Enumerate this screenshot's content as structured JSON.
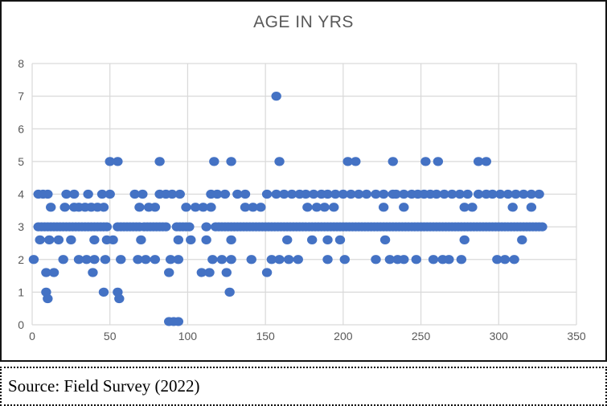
{
  "source_note": {
    "text": "Source: Field Survey (2022)"
  },
  "chart_data": {
    "type": "scatter",
    "title": "AGE IN YRS",
    "xlabel": "",
    "ylabel": "",
    "xlim": [
      0,
      350
    ],
    "ylim": [
      0,
      8
    ],
    "x_ticks": [
      0,
      50,
      100,
      150,
      200,
      250,
      300,
      350
    ],
    "y_ticks": [
      0,
      1,
      2,
      3,
      4,
      5,
      6,
      7,
      8
    ],
    "grid": true,
    "legend": false,
    "marker_color": "#4472C4",
    "gridline_color": "#D9D9D9",
    "tick_label_color": "#595959",
    "title_color": "#595959",
    "series": [
      {
        "name": "age-7",
        "y": 7,
        "x": [
          157
        ]
      },
      {
        "name": "age-5",
        "y": 5,
        "x": [
          50,
          55,
          82,
          117,
          128,
          159,
          203,
          208,
          232,
          253,
          261,
          287,
          292
        ]
      },
      {
        "name": "age-4",
        "y": 4,
        "x": [
          4,
          7,
          10,
          22,
          27,
          36,
          45,
          50,
          66,
          71,
          82,
          86,
          90,
          95,
          115,
          119,
          124,
          132,
          137,
          151,
          157,
          162,
          167,
          172,
          176,
          181,
          186,
          190,
          195,
          200,
          205,
          210,
          215,
          221,
          226,
          232,
          234,
          239,
          244,
          248,
          252,
          256,
          260,
          265,
          270,
          275,
          280,
          287,
          292,
          296,
          301,
          306,
          311,
          316,
          321,
          326
        ]
      },
      {
        "name": "age-3.6",
        "y": 3.6,
        "x": [
          12,
          21,
          27,
          30,
          34,
          38,
          42,
          46,
          69,
          75,
          79,
          99,
          105,
          110,
          115,
          137,
          142,
          147,
          177,
          183,
          188,
          194,
          226,
          239,
          278,
          283,
          309,
          321
        ]
      },
      {
        "name": "age-3",
        "y": 3,
        "x": [
          4,
          6,
          8,
          10,
          12,
          14,
          16,
          18,
          20,
          22,
          24,
          26,
          28,
          30,
          32,
          34,
          36,
          38,
          40,
          42,
          44,
          46,
          48,
          55,
          57,
          59,
          61,
          63,
          65,
          67,
          69,
          72,
          74,
          76,
          78,
          80,
          82,
          84,
          86,
          93,
          95,
          97,
          99,
          101,
          112,
          118,
          120,
          122,
          124,
          126,
          128,
          130,
          132,
          134,
          136,
          138,
          140,
          142,
          144,
          146,
          148,
          150,
          152,
          154,
          156,
          158,
          160,
          162,
          164,
          166,
          168,
          170,
          172,
          174,
          176,
          178,
          180,
          182,
          184,
          186,
          188,
          190,
          192,
          194,
          196,
          198,
          200,
          202,
          204,
          206,
          208,
          210,
          212,
          214,
          216,
          218,
          220,
          222,
          224,
          226,
          228,
          230,
          232,
          234,
          236,
          238,
          240,
          242,
          244,
          246,
          248,
          250,
          252,
          254,
          256,
          258,
          260,
          262,
          264,
          266,
          268,
          270,
          272,
          274,
          276,
          278,
          280,
          282,
          284,
          286,
          288,
          290,
          292,
          294,
          296,
          298,
          300,
          302,
          304,
          306,
          308,
          310,
          312,
          314,
          316,
          318,
          320,
          322,
          324,
          326,
          328
        ]
      },
      {
        "name": "age-2.6",
        "y": 2.6,
        "x": [
          5,
          11,
          17,
          25,
          40,
          48,
          52,
          70,
          94,
          102,
          112,
          128,
          164,
          180,
          190,
          198,
          227,
          278,
          315
        ]
      },
      {
        "name": "age-2",
        "y": 2,
        "x": [
          1,
          20,
          30,
          35,
          40,
          47,
          57,
          68,
          73,
          79,
          89,
          94,
          116,
          122,
          128,
          141,
          154,
          159,
          165,
          171,
          190,
          201,
          221,
          230,
          235,
          239,
          247,
          258,
          264,
          268,
          276,
          299,
          304,
          310
        ]
      },
      {
        "name": "age-1.6",
        "y": 1.6,
        "x": [
          9,
          14,
          39,
          88,
          109,
          114,
          125,
          151
        ]
      },
      {
        "name": "age-1",
        "y": 1,
        "x": [
          9,
          46,
          55,
          127
        ]
      },
      {
        "name": "age-0.8",
        "y": 0.8,
        "x": [
          10,
          56
        ]
      },
      {
        "name": "age-0.1",
        "y": 0.1,
        "x": [
          88,
          91,
          94
        ]
      }
    ]
  }
}
